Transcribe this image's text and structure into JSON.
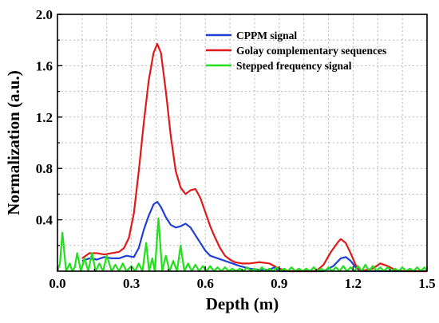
{
  "chart_data": {
    "type": "line",
    "title": "",
    "xlabel": "Depth (m)",
    "ylabel": "Normalization (a.u.)",
    "xlim": [
      0.0,
      1.5
    ],
    "ylim": [
      0.0,
      2.0
    ],
    "xticks": [
      0.0,
      0.3,
      0.6,
      0.9,
      1.2,
      1.5
    ],
    "yticks": [
      0.4,
      0.8,
      1.2,
      1.6,
      2.0
    ],
    "xtick_labels": [
      "0.0",
      "0.3",
      "0.6",
      "0.9",
      "1.2",
      "1.5"
    ],
    "ytick_labels": [
      "0.4",
      "0.8",
      "1.2",
      "1.6",
      "2.0"
    ],
    "grid": true,
    "legend_position": "top-right",
    "series": [
      {
        "name": "CPPM signal",
        "color": "#1f3fd6",
        "points": [
          [
            0.1,
            0.08
          ],
          [
            0.13,
            0.1
          ],
          [
            0.16,
            0.09
          ],
          [
            0.19,
            0.11
          ],
          [
            0.22,
            0.1
          ],
          [
            0.25,
            0.1
          ],
          [
            0.28,
            0.12
          ],
          [
            0.31,
            0.11
          ],
          [
            0.33,
            0.18
          ],
          [
            0.35,
            0.32
          ],
          [
            0.37,
            0.43
          ],
          [
            0.39,
            0.52
          ],
          [
            0.405,
            0.54
          ],
          [
            0.42,
            0.5
          ],
          [
            0.44,
            0.42
          ],
          [
            0.46,
            0.36
          ],
          [
            0.48,
            0.34
          ],
          [
            0.5,
            0.35
          ],
          [
            0.52,
            0.37
          ],
          [
            0.54,
            0.34
          ],
          [
            0.56,
            0.28
          ],
          [
            0.58,
            0.22
          ],
          [
            0.6,
            0.16
          ],
          [
            0.62,
            0.12
          ],
          [
            0.65,
            0.1
          ],
          [
            0.68,
            0.08
          ],
          [
            0.71,
            0.06
          ],
          [
            0.74,
            0.04
          ],
          [
            0.78,
            0.02
          ],
          [
            0.82,
            0.01
          ],
          [
            0.86,
            0.01
          ],
          [
            0.88,
            0.03
          ],
          [
            0.9,
            0.0
          ],
          [
            1.08,
            0.0
          ],
          [
            1.12,
            0.04
          ],
          [
            1.15,
            0.1
          ],
          [
            1.17,
            0.11
          ],
          [
            1.19,
            0.08
          ],
          [
            1.21,
            0.03
          ],
          [
            1.23,
            0.0
          ],
          [
            1.5,
            0.0
          ]
        ]
      },
      {
        "name": "Golay complementary sequences",
        "color": "#e0191b",
        "points": [
          [
            0.1,
            0.1
          ],
          [
            0.13,
            0.14
          ],
          [
            0.16,
            0.14
          ],
          [
            0.19,
            0.13
          ],
          [
            0.22,
            0.14
          ],
          [
            0.25,
            0.15
          ],
          [
            0.27,
            0.18
          ],
          [
            0.29,
            0.26
          ],
          [
            0.31,
            0.45
          ],
          [
            0.33,
            0.78
          ],
          [
            0.35,
            1.15
          ],
          [
            0.37,
            1.48
          ],
          [
            0.39,
            1.7
          ],
          [
            0.405,
            1.77
          ],
          [
            0.42,
            1.7
          ],
          [
            0.44,
            1.4
          ],
          [
            0.46,
            1.05
          ],
          [
            0.48,
            0.78
          ],
          [
            0.5,
            0.65
          ],
          [
            0.52,
            0.6
          ],
          [
            0.54,
            0.63
          ],
          [
            0.56,
            0.64
          ],
          [
            0.58,
            0.57
          ],
          [
            0.6,
            0.46
          ],
          [
            0.62,
            0.35
          ],
          [
            0.64,
            0.26
          ],
          [
            0.66,
            0.18
          ],
          [
            0.68,
            0.12
          ],
          [
            0.7,
            0.09
          ],
          [
            0.72,
            0.07
          ],
          [
            0.75,
            0.06
          ],
          [
            0.78,
            0.06
          ],
          [
            0.82,
            0.07
          ],
          [
            0.86,
            0.06
          ],
          [
            0.9,
            0.02
          ],
          [
            0.94,
            0.0
          ],
          [
            1.05,
            0.0
          ],
          [
            1.08,
            0.05
          ],
          [
            1.11,
            0.15
          ],
          [
            1.14,
            0.23
          ],
          [
            1.15,
            0.25
          ],
          [
            1.17,
            0.22
          ],
          [
            1.19,
            0.14
          ],
          [
            1.21,
            0.05
          ],
          [
            1.23,
            0.0
          ],
          [
            1.28,
            0.02
          ],
          [
            1.31,
            0.06
          ],
          [
            1.34,
            0.04
          ],
          [
            1.37,
            0.01
          ],
          [
            1.4,
            0.0
          ],
          [
            1.5,
            0.0
          ]
        ]
      },
      {
        "name": "Stepped frequency signal",
        "color": "#22e01b",
        "points": [
          [
            0.0,
            0.0
          ],
          [
            0.01,
            0.06
          ],
          [
            0.02,
            0.3
          ],
          [
            0.035,
            0.0
          ],
          [
            0.05,
            0.06
          ],
          [
            0.06,
            0.0
          ],
          [
            0.07,
            0.03
          ],
          [
            0.08,
            0.14
          ],
          [
            0.095,
            0.0
          ],
          [
            0.11,
            0.1
          ],
          [
            0.125,
            0.0
          ],
          [
            0.14,
            0.14
          ],
          [
            0.155,
            0.0
          ],
          [
            0.17,
            0.06
          ],
          [
            0.185,
            0.0
          ],
          [
            0.2,
            0.12
          ],
          [
            0.22,
            0.0
          ],
          [
            0.235,
            0.05
          ],
          [
            0.25,
            0.0
          ],
          [
            0.265,
            0.06
          ],
          [
            0.28,
            0.0
          ],
          [
            0.3,
            0.04
          ],
          [
            0.315,
            0.0
          ],
          [
            0.33,
            0.06
          ],
          [
            0.345,
            0.0
          ],
          [
            0.36,
            0.22
          ],
          [
            0.372,
            0.0
          ],
          [
            0.385,
            0.1
          ],
          [
            0.395,
            0.0
          ],
          [
            0.41,
            0.41
          ],
          [
            0.425,
            0.0
          ],
          [
            0.44,
            0.12
          ],
          [
            0.455,
            0.0
          ],
          [
            0.47,
            0.08
          ],
          [
            0.485,
            0.0
          ],
          [
            0.5,
            0.2
          ],
          [
            0.515,
            0.0
          ],
          [
            0.53,
            0.06
          ],
          [
            0.545,
            0.0
          ],
          [
            0.56,
            0.05
          ],
          [
            0.575,
            0.0
          ],
          [
            0.59,
            0.04
          ],
          [
            0.605,
            0.0
          ],
          [
            0.62,
            0.04
          ],
          [
            0.635,
            0.0
          ],
          [
            0.65,
            0.03
          ],
          [
            0.665,
            0.0
          ],
          [
            0.68,
            0.03
          ],
          [
            0.695,
            0.0
          ],
          [
            0.71,
            0.02
          ],
          [
            0.725,
            0.0
          ],
          [
            0.74,
            0.02
          ],
          [
            0.755,
            0.0
          ],
          [
            0.77,
            0.03
          ],
          [
            0.785,
            0.0
          ],
          [
            0.8,
            0.02
          ],
          [
            0.815,
            0.0
          ],
          [
            0.83,
            0.03
          ],
          [
            0.845,
            0.0
          ],
          [
            0.86,
            0.02
          ],
          [
            0.875,
            0.0
          ],
          [
            0.89,
            0.03
          ],
          [
            0.905,
            0.0
          ],
          [
            0.92,
            0.02
          ],
          [
            0.935,
            0.0
          ],
          [
            0.95,
            0.03
          ],
          [
            0.965,
            0.0
          ],
          [
            0.98,
            0.02
          ],
          [
            0.995,
            0.0
          ],
          [
            1.01,
            0.02
          ],
          [
            1.025,
            0.0
          ],
          [
            1.04,
            0.03
          ],
          [
            1.055,
            0.0
          ],
          [
            1.07,
            0.02
          ],
          [
            1.085,
            0.0
          ],
          [
            1.1,
            0.03
          ],
          [
            1.115,
            0.0
          ],
          [
            1.13,
            0.03
          ],
          [
            1.145,
            0.0
          ],
          [
            1.16,
            0.04
          ],
          [
            1.175,
            0.0
          ],
          [
            1.19,
            0.03
          ],
          [
            1.205,
            0.0
          ],
          [
            1.22,
            0.04
          ],
          [
            1.235,
            0.0
          ],
          [
            1.25,
            0.05
          ],
          [
            1.265,
            0.0
          ],
          [
            1.28,
            0.04
          ],
          [
            1.295,
            0.0
          ],
          [
            1.31,
            0.03
          ],
          [
            1.325,
            0.0
          ],
          [
            1.34,
            0.03
          ],
          [
            1.355,
            0.0
          ],
          [
            1.37,
            0.02
          ],
          [
            1.385,
            0.0
          ],
          [
            1.4,
            0.03
          ],
          [
            1.415,
            0.0
          ],
          [
            1.43,
            0.02
          ],
          [
            1.445,
            0.0
          ],
          [
            1.46,
            0.03
          ],
          [
            1.475,
            0.0
          ],
          [
            1.49,
            0.03
          ],
          [
            1.5,
            0.0
          ]
        ]
      }
    ]
  }
}
